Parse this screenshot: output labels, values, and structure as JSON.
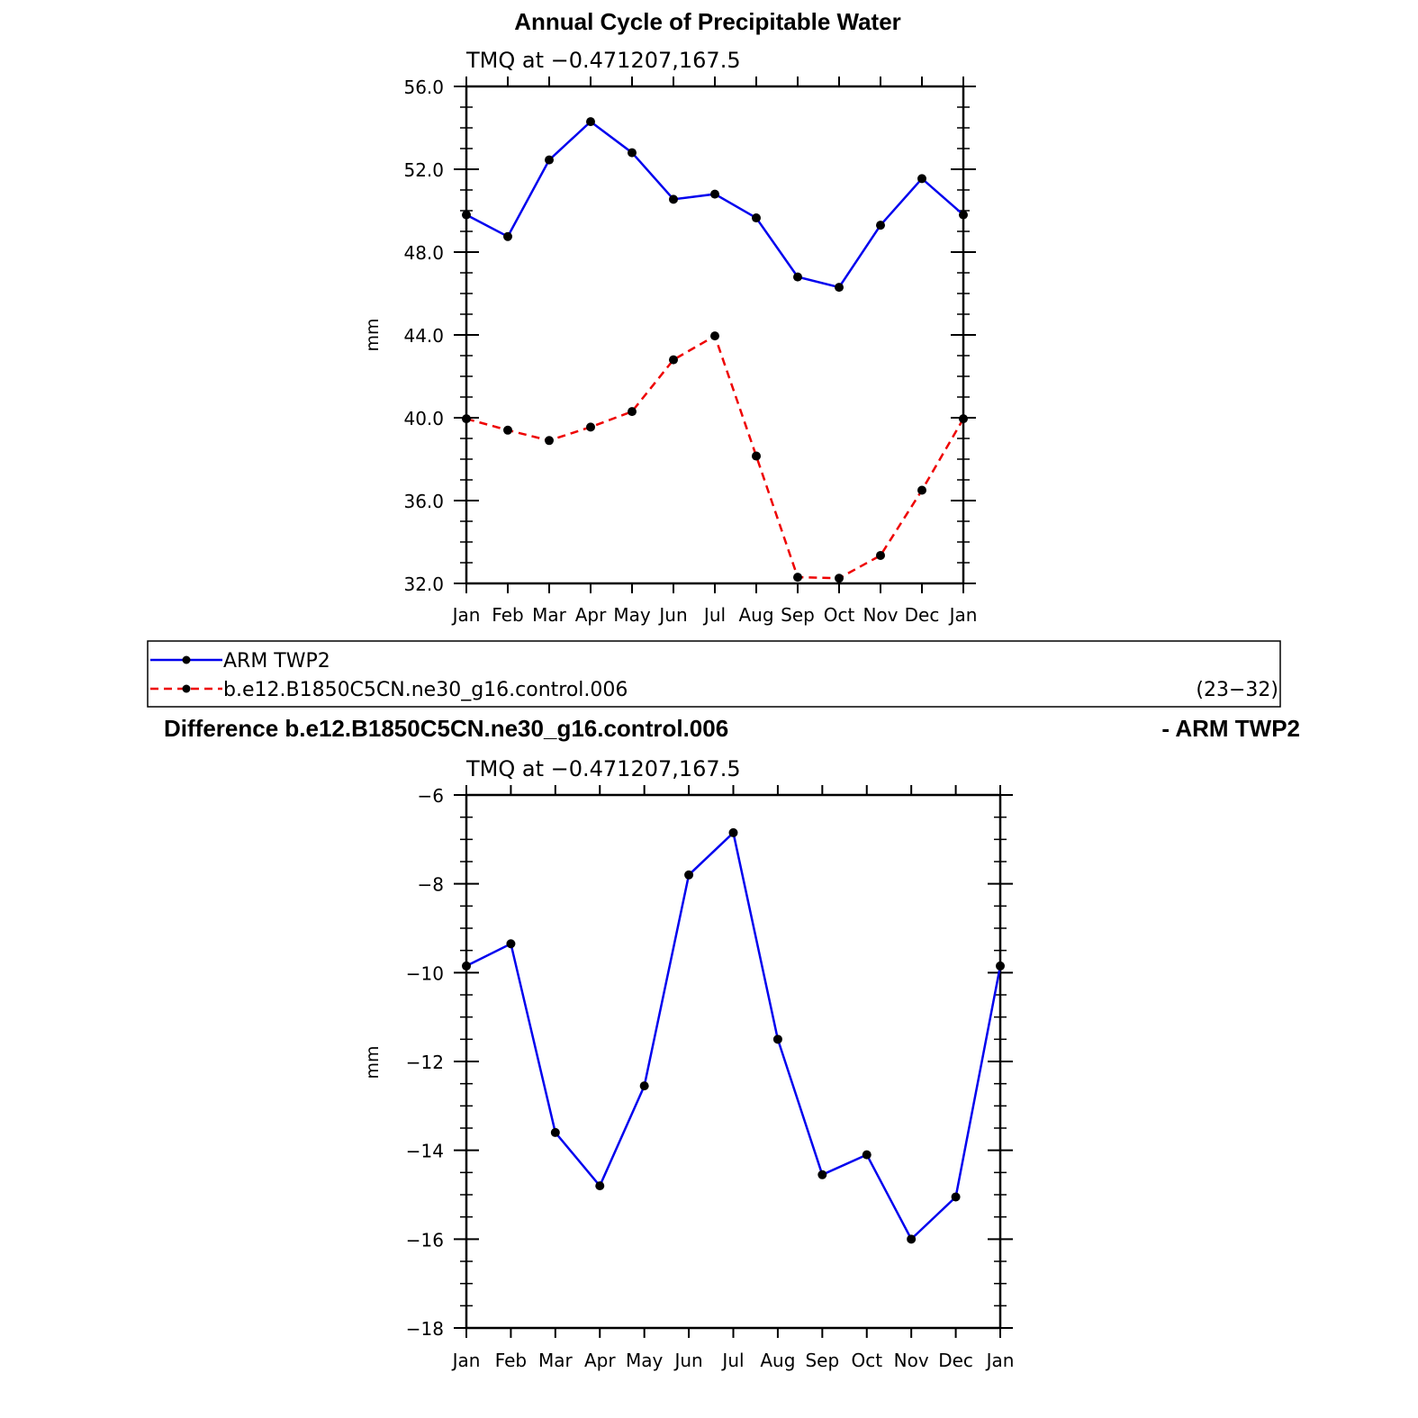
{
  "colors": {
    "series1": "#0000ee",
    "series2": "#ee0000",
    "marker": "#000000",
    "axis": "#000000"
  },
  "chart_data": [
    {
      "type": "line",
      "title": "Annual Cycle of Precipitable Water",
      "subtitle": "TMQ  at  −0.471207,167.5",
      "ylabel": "mm",
      "ylim": [
        32,
        56
      ],
      "yticks": [
        "32.0",
        "36.0",
        "40.0",
        "44.0",
        "48.0",
        "52.0",
        "56.0"
      ],
      "ytick_values": [
        32,
        36,
        40,
        44,
        48,
        52,
        56
      ],
      "categories": [
        "Jan",
        "Feb",
        "Mar",
        "Apr",
        "May",
        "Jun",
        "Jul",
        "Aug",
        "Sep",
        "Oct",
        "Nov",
        "Dec",
        "Jan"
      ],
      "series": [
        {
          "name": "ARM  TWP2",
          "style": "solid",
          "values": [
            49.8,
            48.75,
            52.45,
            54.3,
            52.8,
            50.55,
            50.8,
            49.65,
            46.8,
            46.3,
            49.3,
            51.55,
            49.8
          ]
        },
        {
          "name": "b.e12.B1850C5CN.ne30_g16.control.006",
          "style": "dashed",
          "values": [
            39.95,
            39.4,
            38.9,
            39.55,
            40.3,
            42.8,
            43.95,
            38.15,
            32.3,
            32.25,
            33.35,
            36.5,
            39.95
          ]
        }
      ],
      "legend": {
        "placement": "below",
        "note": "(23−32)"
      }
    },
    {
      "type": "line",
      "title_left": "Difference b.e12.B1850C5CN.ne30_g16.control.006",
      "title_right": "- ARM TWP2",
      "subtitle": "TMQ  at  −0.471207,167.5",
      "ylabel": "mm",
      "ylim": [
        -18,
        -6
      ],
      "yticks": [
        "−18",
        "−16",
        "−14",
        "−12",
        "−10",
        "−8",
        "−6"
      ],
      "ytick_values": [
        -18,
        -16,
        -14,
        -12,
        -10,
        -8,
        -6
      ],
      "categories": [
        "Jan",
        "Feb",
        "Mar",
        "Apr",
        "May",
        "Jun",
        "Jul",
        "Aug",
        "Sep",
        "Oct",
        "Nov",
        "Dec",
        "Jan"
      ],
      "series": [
        {
          "style": "solid",
          "values": [
            -9.85,
            -9.35,
            -13.6,
            -14.8,
            -12.55,
            -7.8,
            -6.85,
            -11.5,
            -14.55,
            -14.1,
            -16.0,
            -15.05,
            -9.85
          ]
        }
      ]
    }
  ]
}
